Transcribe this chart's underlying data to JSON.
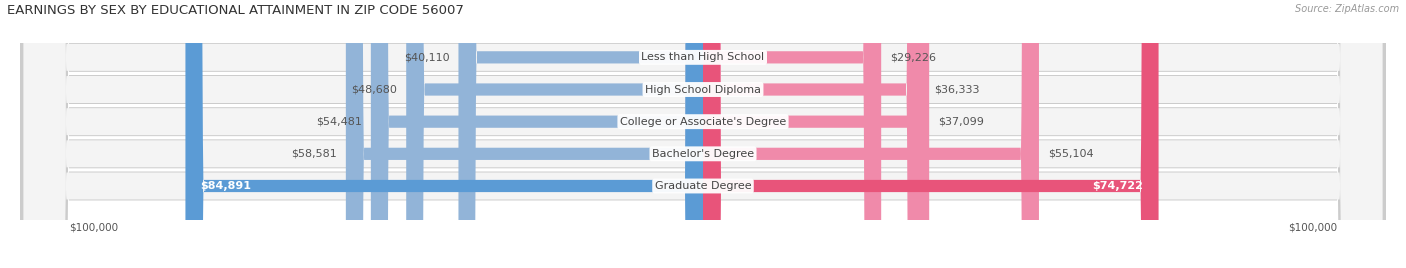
{
  "title": "EARNINGS BY SEX BY EDUCATIONAL ATTAINMENT IN ZIP CODE 56007",
  "source": "Source: ZipAtlas.com",
  "categories": [
    "Less than High School",
    "High School Diploma",
    "College or Associate's Degree",
    "Bachelor's Degree",
    "Graduate Degree"
  ],
  "male_values": [
    40110,
    48680,
    54481,
    58581,
    84891
  ],
  "female_values": [
    29226,
    36333,
    37099,
    55104,
    74722
  ],
  "max_value": 100000,
  "male_color": "#92b4d8",
  "female_color": "#f08aaa",
  "male_color_last": "#5b9bd5",
  "female_color_last": "#e8547a",
  "bg_color": "#ffffff",
  "row_bg_outer": "#d8d8d8",
  "row_bg_inner": "#f0f0f0",
  "title_fontsize": 9.5,
  "label_fontsize": 8.0,
  "tick_fontsize": 7.5,
  "legend_fontsize": 8.0
}
